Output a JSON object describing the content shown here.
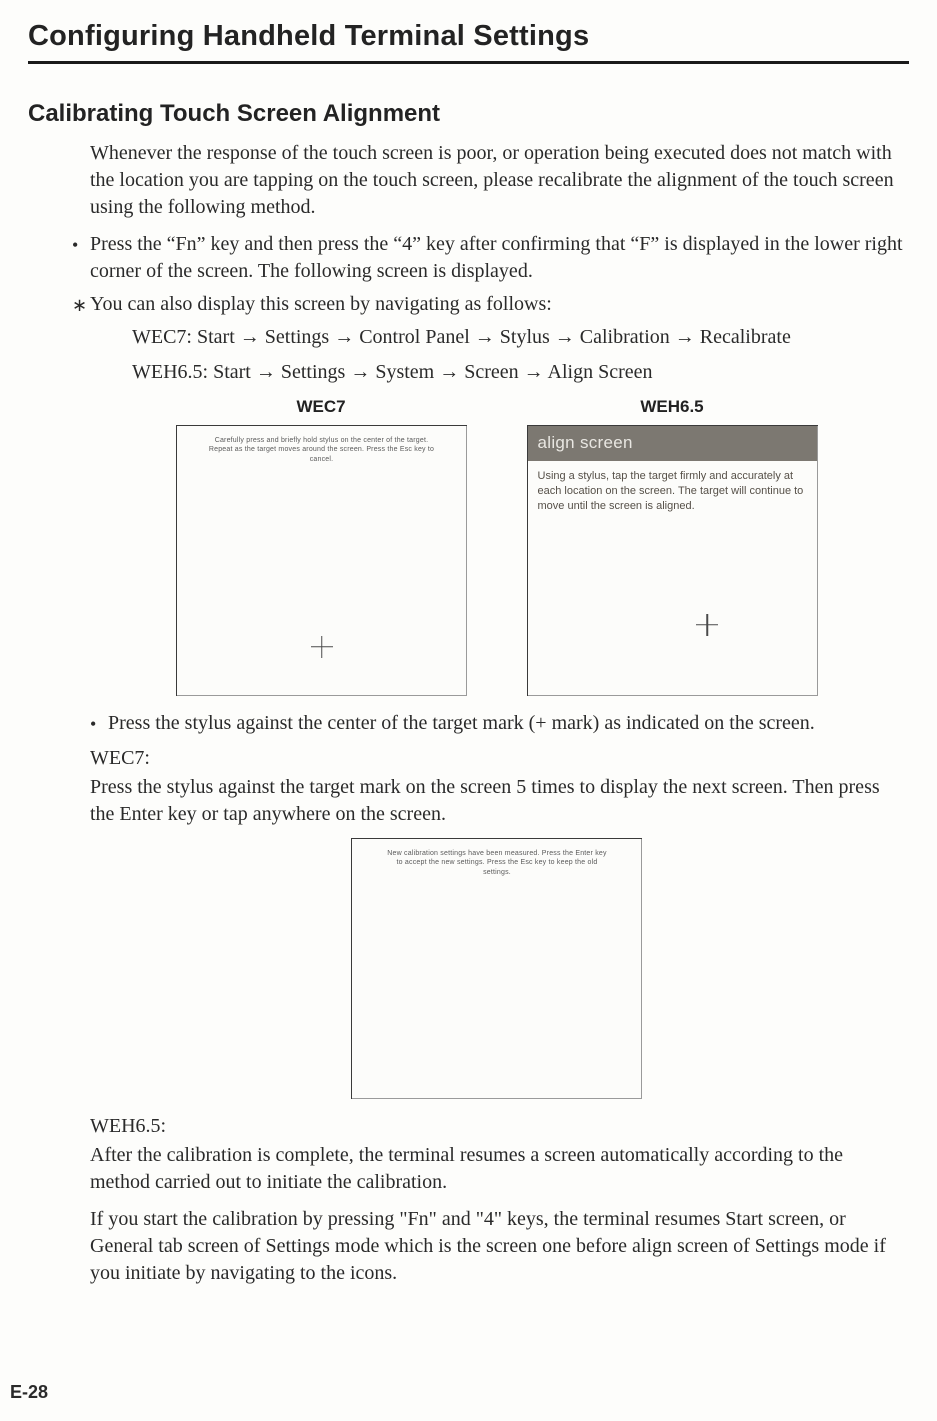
{
  "page": {
    "heading": "Configuring Handheld Terminal Settings",
    "subheading": "Calibrating Touch Screen Alignment",
    "intro": "Whenever the response of the touch screen is poor, or operation being executed does not match with the location you are tapping on the touch screen, please recalibrate the alignment of the touch screen using the following method.",
    "bullets": [
      "Press the “Fn” key and then press the “4” key after confirming that “F” is displayed in the lower right corner of the screen.  The following screen is displayed.",
      "You can also display this screen by navigating as follows:"
    ],
    "bullet_marks": [
      "•",
      "∗"
    ],
    "nav": {
      "wec7": "WEC7: Start → Settings → Control Panel → Stylus → Calibration → Recalibrate",
      "weh65": "WEH6.5: Start → Settings → System → Screen → Align Screen"
    },
    "screens_top": {
      "labels": {
        "wec7": "WEC7",
        "weh65": "WEH6.5"
      },
      "wec7_tiny": "Carefully press and briefly hold stylus on the center of the target. Repeat as the target moves around the screen. Press the Esc key to cancel.",
      "weh65_header": "align screen",
      "weh65_body": "Using a stylus, tap the target firmly and accurately at each location on the screen. The target will continue to move until the screen is aligned."
    },
    "after_screens_bullet": "Press the stylus against the center of the target mark (+ mark) as indicated on the screen.",
    "after_screens_bullet_mark": "•",
    "wec7_block": {
      "label": "WEC7:",
      "text": "Press the stylus against the target mark on the screen 5 times to display the next screen. Then press the Enter key or tap anywhere on the screen."
    },
    "middle_screen_tiny": "New calibration settings have been measured. Press the Enter key to accept the new settings. Press the Esc key to keep the old settings.",
    "weh65_block": {
      "label": "WEH6.5:",
      "p1": "After the calibration is complete, the terminal resumes a screen automatically according to the method carried out to initiate the calibration.",
      "p2": "If you start the calibration by pressing \"Fn\" and \"4\" keys, the terminal resumes Start screen, or General tab screen of Settings mode which is the screen one before align screen of Settings mode if you initiate by navigating to the icons."
    },
    "page_number": "E-28"
  },
  "colors": {
    "text": "#2a2a2a",
    "rule": "#1a1a1a",
    "tiny": "#5a5a5a",
    "weh_header_bg": "#7c7871",
    "weh_header_fg": "#e9e7e2",
    "weh_body_fg": "#565048",
    "screen_border": "#3a3a3a",
    "background": "#fdfdfb"
  }
}
